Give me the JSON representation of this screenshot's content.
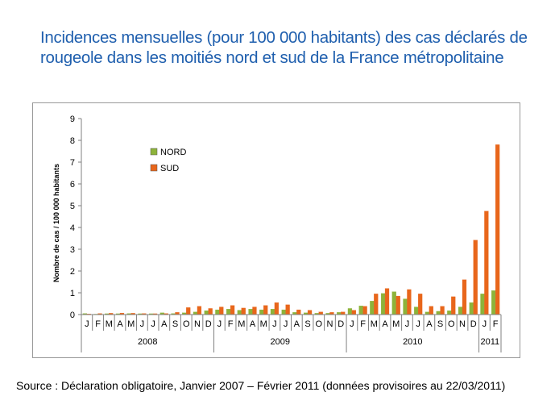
{
  "title": {
    "line1": "Incidences mensuelles (pour 100 000 habitants) des cas déclarés de",
    "line2": "rougeole dans les moitiés nord et sud de la France métropolitaine"
  },
  "source": "Source : Déclaration obligatoire, Janvier 2007 – Février 2011 (données provisoires au 22/03/2011)",
  "colors": {
    "nord": "#8db33a",
    "sud": "#e8661b",
    "axis": "#808080",
    "title": "#1f5fae"
  },
  "chart_data": {
    "type": "bar",
    "title": "",
    "xlabel": "",
    "ylabel": "Nombre de cas / 100 000 habitants",
    "ylim": [
      0,
      9
    ],
    "yticks": [
      0,
      1,
      2,
      3,
      4,
      5,
      6,
      7,
      8,
      9
    ],
    "grid": false,
    "legend": "top-left",
    "categories": [
      "J",
      "F",
      "M",
      "A",
      "M",
      "J",
      "J",
      "A",
      "S",
      "O",
      "N",
      "D",
      "J",
      "F",
      "M",
      "A",
      "M",
      "J",
      "J",
      "A",
      "S",
      "O",
      "N",
      "D",
      "J",
      "F",
      "M",
      "A",
      "M",
      "J",
      "J",
      "A",
      "S",
      "O",
      "N",
      "D",
      "J",
      "F"
    ],
    "year_groups": [
      {
        "label": "2008",
        "count": 12
      },
      {
        "label": "2009",
        "count": 12
      },
      {
        "label": "2010",
        "count": 12
      },
      {
        "label": "2011",
        "count": 2
      }
    ],
    "series": [
      {
        "name": "NORD",
        "color": "#8db33a",
        "values": [
          0.05,
          0.02,
          0.04,
          0.04,
          0.05,
          0.04,
          0.04,
          0.08,
          0.05,
          0.08,
          0.12,
          0.18,
          0.22,
          0.25,
          0.2,
          0.25,
          0.22,
          0.25,
          0.22,
          0.1,
          0.08,
          0.06,
          0.06,
          0.1,
          0.28,
          0.4,
          0.62,
          0.97,
          1.05,
          0.72,
          0.35,
          0.12,
          0.15,
          0.18,
          0.35,
          0.55,
          0.95,
          1.1
        ]
      },
      {
        "name": "SUD",
        "color": "#e8661b",
        "values": [
          0.03,
          0.05,
          0.06,
          0.07,
          0.06,
          0.05,
          0.04,
          0.05,
          0.1,
          0.32,
          0.38,
          0.28,
          0.35,
          0.42,
          0.3,
          0.35,
          0.42,
          0.55,
          0.45,
          0.22,
          0.2,
          0.12,
          0.1,
          0.12,
          0.2,
          0.38,
          0.95,
          1.2,
          0.85,
          1.15,
          0.95,
          0.38,
          0.38,
          0.82,
          1.6,
          3.42,
          4.75,
          7.8
        ]
      }
    ]
  }
}
